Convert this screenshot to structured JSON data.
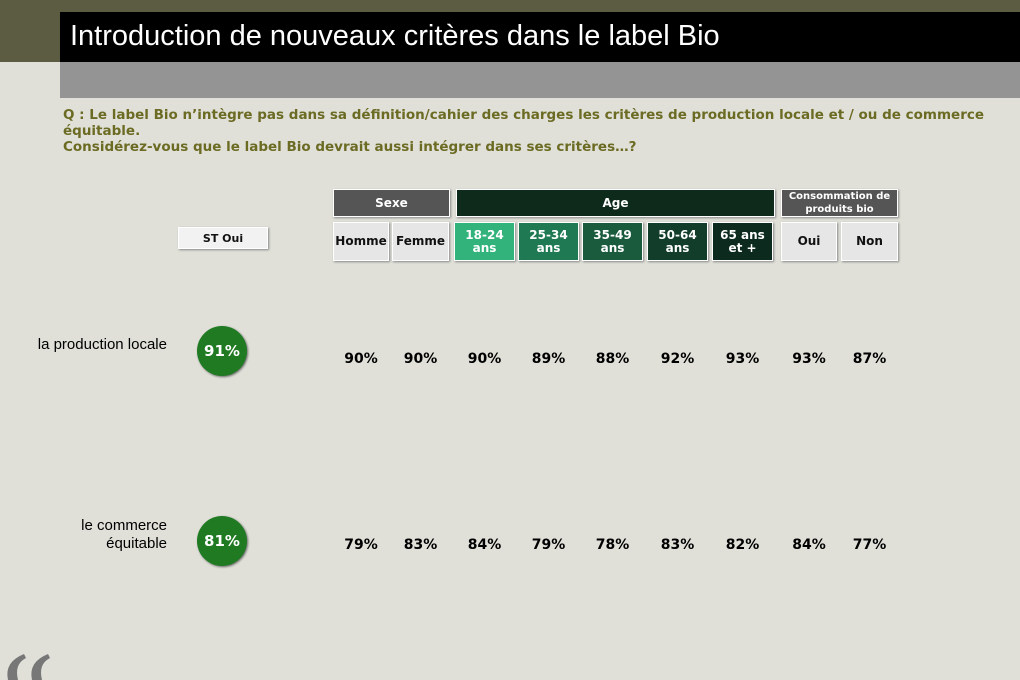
{
  "title": "Introduction de nouveaux critères dans le label Bio",
  "question": {
    "line1": "Q  : Le label Bio n’intègre pas dans sa définition/cahier des charges les critères de production locale et / ou de commerce équitable.",
    "line2": "Considérez-vous que le label Bio devrait aussi intégrer dans ses critères…?"
  },
  "table": {
    "total_header": "ST Oui",
    "groups": [
      "Sexe",
      "Age",
      "Consommation de produits bio"
    ],
    "columns": [
      "Homme",
      "Femme",
      "18-24 ans",
      "25-34 ans",
      "35-49 ans",
      "50-64 ans",
      "65 ans et +",
      "Oui",
      "Non"
    ],
    "rows": [
      {
        "label": "la production locale",
        "total": "91%",
        "values": [
          "90%",
          "90%",
          "90%",
          "89%",
          "88%",
          "92%",
          "93%",
          "93%",
          "87%"
        ]
      },
      {
        "label": "le commerce équitable",
        "total": "81%",
        "values": [
          "79%",
          "83%",
          "84%",
          "79%",
          "78%",
          "83%",
          "82%",
          "84%",
          "77%"
        ]
      }
    ]
  }
}
